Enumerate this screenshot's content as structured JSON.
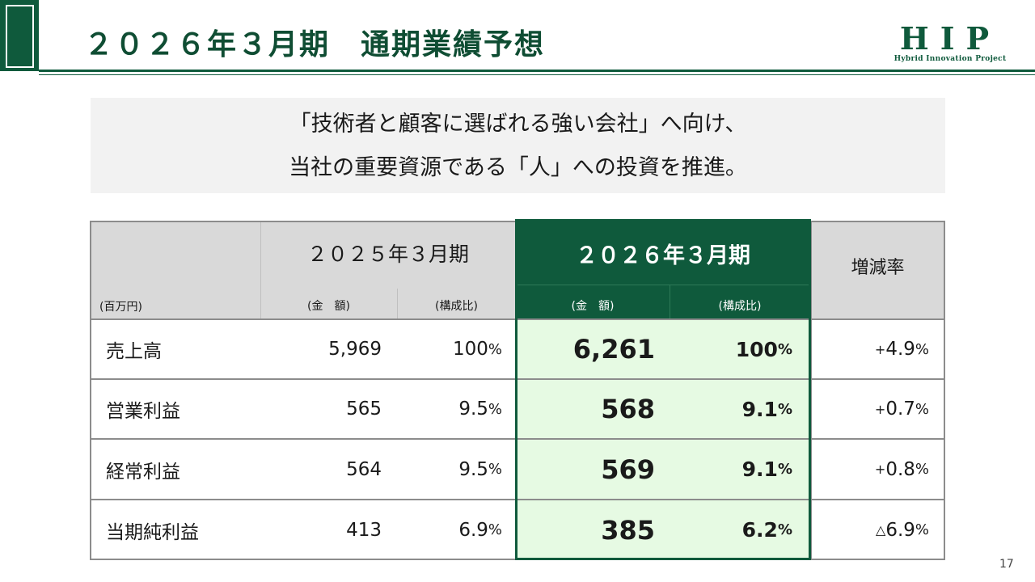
{
  "header": {
    "title": "２０２６年３月期　通期業績予想",
    "logo": {
      "mark": "HIP",
      "sub": "Hybrid Innovation Project"
    }
  },
  "message": {
    "line1": "「技術者と顧客に選ばれる強い会社」へ向け、",
    "line2": "当社の重要資源である「人」への投資を推進。"
  },
  "table": {
    "unit_label": "(百万円)",
    "prev_period": "２０２５年３月期",
    "curr_period": "２０２６年３月期",
    "change_header": "増減率",
    "amount_header": "(金　額)",
    "ratio_header": "(構成比)",
    "rows": [
      {
        "label": "売上高",
        "prev_amount": "5,969",
        "prev_ratio": "100",
        "curr_amount": "6,261",
        "curr_ratio": "100",
        "change_sign": "+",
        "change": "4.9"
      },
      {
        "label": "営業利益",
        "prev_amount": "565",
        "prev_ratio": "9.5",
        "curr_amount": "568",
        "curr_ratio": "9.1",
        "change_sign": "+",
        "change": "0.7"
      },
      {
        "label": "経常利益",
        "prev_amount": "564",
        "prev_ratio": "9.5",
        "curr_amount": "569",
        "curr_ratio": "9.1",
        "change_sign": "+",
        "change": "0.8"
      },
      {
        "label": "当期純利益",
        "prev_amount": "413",
        "prev_ratio": "6.9",
        "curr_amount": "385",
        "curr_ratio": "6.2",
        "change_sign": "△",
        "change": "6.9"
      }
    ],
    "percent_sign": "%"
  },
  "page_number": "17"
}
